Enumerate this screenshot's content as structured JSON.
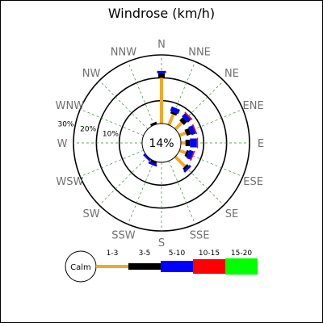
{
  "chart_data": {
    "type": "windrose",
    "title": "Windrose (km/h)",
    "calm_label": "14%",
    "directions": [
      "N",
      "NNE",
      "NE",
      "ENE",
      "E",
      "ESE",
      "SE",
      "SSE",
      "S",
      "SSW",
      "SW",
      "WSW",
      "W",
      "WNW",
      "NW",
      "NNW"
    ],
    "ring_labels": [
      "10%",
      "20%",
      "30%"
    ],
    "rings_percent": [
      10,
      20,
      30
    ],
    "speed_bins": [
      {
        "label": "1-3",
        "color": "#f5a623"
      },
      {
        "label": "3-5",
        "color": "#000000"
      },
      {
        "label": "5-10",
        "color": "#0000ff"
      },
      {
        "label": "10-15",
        "color": "#ff0000"
      },
      {
        "label": "15-20",
        "color": "#00ff00"
      }
    ],
    "legend_calm_label": "Calm",
    "series_percent": [
      {
        "dir": "N",
        "values": [
          20,
          2,
          1,
          0,
          0
        ]
      },
      {
        "dir": "NNE",
        "values": [
          5,
          1,
          2,
          0,
          0
        ]
      },
      {
        "dir": "NE",
        "values": [
          4,
          2,
          2,
          0.5,
          0
        ]
      },
      {
        "dir": "ENE",
        "values": [
          3,
          2,
          2,
          0.5,
          0
        ]
      },
      {
        "dir": "E",
        "values": [
          2,
          2,
          3,
          0.5,
          0
        ]
      },
      {
        "dir": "ESE",
        "values": [
          3,
          1,
          2,
          0.5,
          0
        ]
      },
      {
        "dir": "SE",
        "values": [
          6,
          1,
          1,
          0,
          0
        ]
      },
      {
        "dir": "SSE",
        "values": [
          0,
          0,
          0,
          0,
          0
        ]
      },
      {
        "dir": "S",
        "values": [
          0,
          0,
          0,
          0,
          0
        ]
      },
      {
        "dir": "SSW",
        "values": [
          0,
          1,
          1,
          0,
          0
        ]
      },
      {
        "dir": "SW",
        "values": [
          0,
          0,
          1,
          0,
          0
        ]
      },
      {
        "dir": "WSW",
        "values": [
          0,
          0,
          0,
          0,
          0
        ]
      },
      {
        "dir": "W",
        "values": [
          0,
          0,
          0,
          0,
          0
        ]
      },
      {
        "dir": "WNW",
        "values": [
          0,
          0,
          0,
          0,
          0
        ]
      },
      {
        "dir": "NW",
        "values": [
          0,
          0,
          0,
          0,
          0
        ]
      },
      {
        "dir": "NNW",
        "values": [
          0,
          1,
          0,
          0,
          0
        ]
      }
    ]
  }
}
